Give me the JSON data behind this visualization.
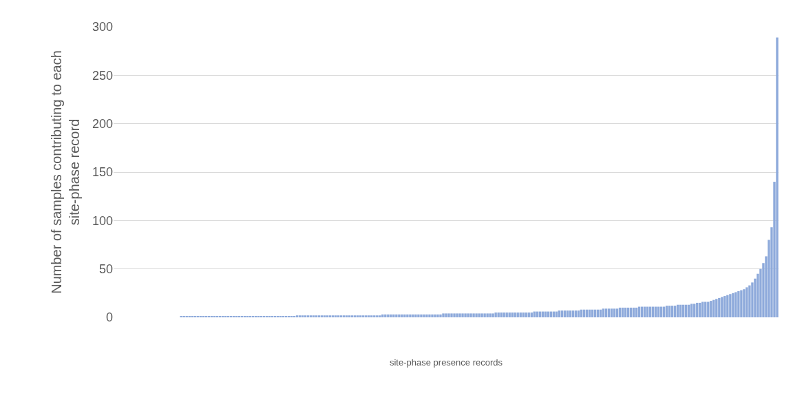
{
  "chart_data": {
    "type": "bar",
    "xlabel": "site-phase presence records",
    "ylabel": "Number of samples contributing to each site-phase record",
    "categories": [
      null,
      null,
      null,
      null,
      null,
      null,
      null,
      null,
      null,
      null,
      null,
      null,
      null,
      null,
      null,
      null,
      null,
      null,
      null,
      null,
      null,
      null,
      null,
      null,
      null,
      null,
      null,
      null,
      null,
      null,
      null,
      null,
      null,
      null,
      null,
      null,
      null,
      null,
      null,
      null,
      null,
      null,
      null,
      null,
      null,
      null,
      null,
      null,
      null,
      null,
      null,
      null,
      null,
      null,
      null,
      null,
      null,
      null,
      null,
      null,
      null,
      null,
      null,
      null,
      null,
      null,
      null,
      null,
      null,
      null,
      null,
      null,
      null,
      null,
      null,
      null,
      null,
      null,
      null,
      null,
      null,
      null,
      null,
      null,
      null,
      null,
      null,
      null,
      null,
      null,
      null,
      null,
      null,
      null,
      null,
      null,
      null,
      null,
      null,
      null,
      null,
      null,
      null,
      null,
      null,
      null,
      null,
      null,
      null,
      null,
      null,
      null,
      null,
      null,
      null,
      null,
      null,
      null,
      null,
      null,
      null,
      null,
      null,
      null,
      null,
      null,
      null,
      null,
      null,
      null,
      null,
      null,
      null,
      null,
      null,
      null,
      null,
      null,
      null,
      null,
      null,
      null,
      null,
      null,
      null,
      null,
      null,
      null,
      null,
      null,
      null,
      null,
      null,
      null,
      null,
      null,
      null,
      null,
      null,
      null,
      null,
      null,
      null,
      null,
      null,
      null,
      null,
      null,
      null,
      null,
      null,
      null,
      null,
      null,
      null,
      null,
      null,
      null,
      null,
      null,
      null,
      null,
      null,
      null,
      null,
      null,
      null,
      null,
      null,
      null,
      null,
      null,
      null,
      null,
      null,
      null,
      null,
      null,
      null,
      null,
      null,
      null,
      null,
      null,
      null,
      null,
      null,
      null,
      null,
      null,
      null,
      null,
      null,
      null,
      null,
      null,
      null,
      null,
      null,
      null,
      null,
      null,
      null,
      null,
      null,
      null,
      null,
      null,
      null,
      null,
      null,
      null,
      null,
      null,
      null,
      null,
      null,
      null,
      null,
      null,
      null
    ],
    "values": [
      0,
      0,
      0,
      0,
      0,
      0,
      0,
      0,
      0,
      0,
      0,
      0,
      0,
      0,
      0,
      0,
      0,
      0,
      0,
      0,
      0,
      0,
      0,
      0,
      1,
      1,
      1,
      1,
      1,
      1,
      1,
      1,
      1,
      1,
      1,
      1,
      1,
      1,
      1,
      1,
      1,
      1,
      1,
      1,
      1,
      1,
      1,
      1,
      1,
      1,
      1,
      1,
      1,
      1,
      1,
      1,
      1,
      1,
      1,
      1,
      1,
      1,
      1,
      1,
      1,
      1,
      2,
      2,
      2,
      2,
      2,
      2,
      2,
      2,
      2,
      2,
      2,
      2,
      2,
      2,
      2,
      2,
      2,
      2,
      2,
      2,
      2,
      2,
      2,
      2,
      2,
      2,
      2,
      2,
      2,
      2,
      2,
      3,
      3,
      3,
      3,
      3,
      3,
      3,
      3,
      3,
      3,
      3,
      3,
      3,
      3,
      3,
      3,
      3,
      3,
      3,
      3,
      3,
      3,
      4,
      4,
      4,
      4,
      4,
      4,
      4,
      4,
      4,
      4,
      4,
      4,
      4,
      4,
      4,
      4,
      4,
      4,
      4,
      5,
      5,
      5,
      5,
      5,
      5,
      5,
      5,
      5,
      5,
      5,
      5,
      5,
      5,
      6,
      6,
      6,
      6,
      6,
      6,
      6,
      6,
      6,
      7,
      7,
      7,
      7,
      7,
      7,
      7,
      7,
      8,
      8,
      8,
      8,
      8,
      8,
      8,
      8,
      9,
      9,
      9,
      9,
      9,
      9,
      10,
      10,
      10,
      10,
      10,
      10,
      10,
      11,
      11,
      11,
      11,
      11,
      11,
      11,
      11,
      11,
      11,
      12,
      12,
      12,
      12,
      13,
      13,
      13,
      13,
      13,
      14,
      14,
      15,
      15,
      16,
      16,
      16,
      17,
      18,
      19,
      20,
      21,
      22,
      23,
      24,
      25,
      26,
      27,
      28,
      29,
      31,
      33,
      36,
      40,
      45,
      50,
      56,
      63,
      80,
      93,
      140,
      289
    ],
    "color": "#8eaadb",
    "ylim": [
      0,
      300
    ],
    "yticks": [
      0,
      50,
      100,
      150,
      200,
      250,
      300
    ],
    "grid": "y",
    "tick_labels": "y"
  }
}
